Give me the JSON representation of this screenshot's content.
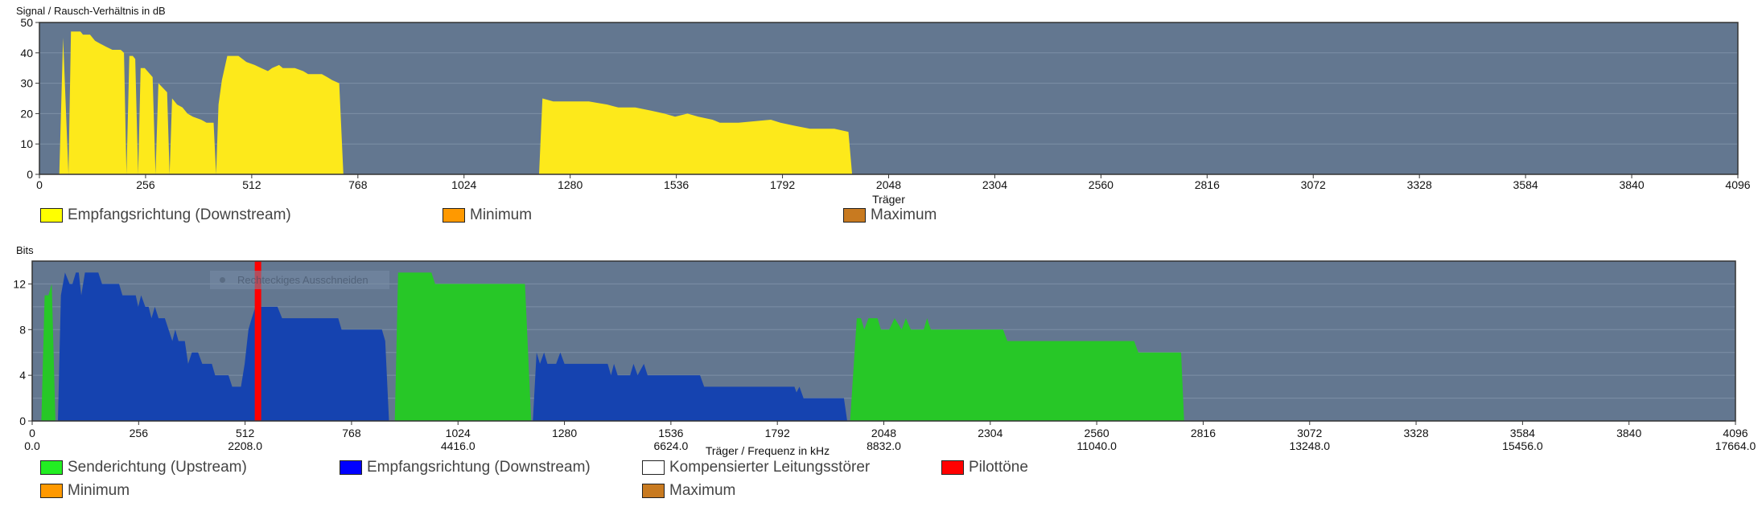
{
  "colors": {
    "plot_bg": "#637790",
    "grid": "#7d8fa6",
    "snr_fill": "#fde91b",
    "downstream_fill": "#1543b0",
    "upstream_fill": "#27c727",
    "pilot": "#ff0000"
  },
  "overlay": {
    "label": "Rechteckiges Ausschneiden"
  },
  "chart_data": [
    {
      "type": "area",
      "title": "Signal / Rausch-Verhältnis in dB",
      "xlabel": "Träger",
      "ylabel": "Signal / Rausch-Verhältnis in dB",
      "xlim": [
        0,
        4096
      ],
      "ylim": [
        0,
        50
      ],
      "xticks": [
        0,
        256,
        512,
        768,
        1024,
        1280,
        1536,
        1792,
        2048,
        2304,
        2560,
        2816,
        3072,
        3328,
        3584,
        3840,
        4096
      ],
      "yticks": [
        0,
        10,
        20,
        30,
        40,
        50
      ],
      "grid": true,
      "legend": [
        {
          "label": "Empfangsrichtung (Downstream)",
          "color": "#ffff00"
        },
        {
          "label": "Minimum",
          "color": "#ff9900"
        },
        {
          "label": "Maximum",
          "color": "#c87a20"
        }
      ],
      "series": [
        {
          "name": "Empfangsrichtung (Downstream)",
          "color": "#fde91b",
          "points": [
            [
              48,
              0
            ],
            [
              57,
              45
            ],
            [
              70,
              0
            ],
            [
              76,
              47
            ],
            [
              99,
              47
            ],
            [
              105,
              46
            ],
            [
              122,
              46
            ],
            [
              134,
              44
            ],
            [
              147,
              43
            ],
            [
              161,
              42
            ],
            [
              176,
              41
            ],
            [
              196,
              41
            ],
            [
              204,
              40
            ],
            [
              210,
              0
            ],
            [
              217,
              39
            ],
            [
              225,
              39
            ],
            [
              231,
              38
            ],
            [
              238,
              0
            ],
            [
              244,
              35
            ],
            [
              254,
              35
            ],
            [
              273,
              32
            ],
            [
              280,
              0
            ],
            [
              287,
              30
            ],
            [
              308,
              27
            ],
            [
              314,
              0
            ],
            [
              320,
              25
            ],
            [
              332,
              23
            ],
            [
              345,
              22
            ],
            [
              357,
              20
            ],
            [
              370,
              19
            ],
            [
              390,
              18
            ],
            [
              403,
              17
            ],
            [
              420,
              17
            ],
            [
              426,
              0
            ],
            [
              432,
              23
            ],
            [
              440,
              31
            ],
            [
              453,
              39
            ],
            [
              480,
              39
            ],
            [
              499,
              37
            ],
            [
              519,
              36
            ],
            [
              535,
              35
            ],
            [
              551,
              34
            ],
            [
              561,
              35
            ],
            [
              578,
              36
            ],
            [
              587,
              35
            ],
            [
              616,
              35
            ],
            [
              636,
              34
            ],
            [
              648,
              33
            ],
            [
              681,
              33
            ],
            [
              694,
              32
            ],
            [
              706,
              31
            ],
            [
              723,
              30
            ],
            [
              733,
              0
            ],
            [
              1205,
              0
            ],
            [
              1213,
              25
            ],
            [
              1239,
              24
            ],
            [
              1265,
              24
            ],
            [
              1284,
              24
            ],
            [
              1291,
              24
            ],
            [
              1325,
              24
            ],
            [
              1369,
              23
            ],
            [
              1396,
              22
            ],
            [
              1437,
              22
            ],
            [
              1474,
              21
            ],
            [
              1507,
              20
            ],
            [
              1533,
              19
            ],
            [
              1563,
              20
            ],
            [
              1589,
              19
            ],
            [
              1623,
              18
            ],
            [
              1641,
              17
            ],
            [
              1686,
              17
            ],
            [
              1764,
              18
            ],
            [
              1787,
              17
            ],
            [
              1821,
              16
            ],
            [
              1858,
              15
            ],
            [
              1877,
              15
            ],
            [
              1917,
              15
            ],
            [
              1951,
              14
            ],
            [
              1960,
              0
            ]
          ]
        }
      ]
    },
    {
      "type": "area",
      "title": "Bits",
      "xlabel": "Träger / Frequenz in kHz",
      "ylabel": "Bits",
      "xlim": [
        0,
        4096
      ],
      "ylim": [
        0,
        14
      ],
      "xticks": [
        0,
        256,
        512,
        768,
        1024,
        1280,
        1536,
        1792,
        2048,
        2304,
        2560,
        2816,
        3072,
        3328,
        3584,
        3840,
        4096
      ],
      "freq_ticks": [
        [
          0,
          "0.0"
        ],
        [
          512,
          "2208.0"
        ],
        [
          1024,
          "4416.0"
        ],
        [
          1536,
          "6624.0"
        ],
        [
          2048,
          "8832.0"
        ],
        [
          2560,
          "11040.0"
        ],
        [
          3072,
          "13248.0"
        ],
        [
          3584,
          "15456.0"
        ],
        [
          4096,
          "17664.0"
        ]
      ],
      "yticks": [
        0,
        4,
        8,
        12
      ],
      "ygrid": [
        2,
        4,
        6,
        8,
        10,
        12
      ],
      "grid": true,
      "legend": [
        {
          "label": "Senderichtung (Upstream)",
          "color": "#22ee22"
        },
        {
          "label": "Empfangsrichtung (Downstream)",
          "color": "#0000ff"
        },
        {
          "label": "Kompensierter Leitungsstörer",
          "color": "#ffffff"
        },
        {
          "label": "Pilottöne",
          "color": "#ff0000"
        },
        {
          "label": "Minimum",
          "color": "#ff9900"
        },
        {
          "label": "Maximum",
          "color": "#c87a20"
        }
      ],
      "series": [
        {
          "name": "Senderichtung (Upstream)",
          "color": "#27c727",
          "segments": [
            [
              [
                22,
                0
              ],
              [
                30,
                11
              ],
              [
                39,
                11
              ],
              [
                47,
                12
              ],
              [
                56,
                0
              ]
            ],
            [
              [
                872,
                0
              ],
              [
                880,
                13
              ],
              [
                960,
                13
              ],
              [
                969,
                12
              ],
              [
                1185,
                12
              ],
              [
                1200,
                0
              ]
            ],
            [
              [
                1967,
                0
              ],
              [
                1983,
                9
              ],
              [
                1993,
                9
              ],
              [
                2001,
                8
              ],
              [
                2011,
                9
              ],
              [
                2033,
                9
              ],
              [
                2041,
                8
              ],
              [
                2061,
                8
              ],
              [
                2074,
                9
              ],
              [
                2091,
                8
              ],
              [
                2101,
                9
              ],
              [
                2113,
                8
              ],
              [
                2144,
                8
              ],
              [
                2152,
                9
              ],
              [
                2161,
                8
              ],
              [
                2335,
                8
              ],
              [
                2345,
                7
              ],
              [
                2650,
                7
              ],
              [
                2660,
                6
              ],
              [
                2763,
                6
              ],
              [
                2770,
                0
              ]
            ]
          ]
        },
        {
          "name": "Empfangsrichtung (Downstream)",
          "color": "#1543b0",
          "segments": [
            [
              [
                62,
                0
              ],
              [
                69,
                11
              ],
              [
                79,
                13
              ],
              [
                90,
                12
              ],
              [
                97,
                12
              ],
              [
                105,
                13
              ],
              [
                112,
                13
              ],
              [
                118,
                11
              ],
              [
                127,
                13
              ],
              [
                159,
                13
              ],
              [
                168,
                12
              ],
              [
                209,
                12
              ],
              [
                217,
                11
              ],
              [
                249,
                11
              ],
              [
                255,
                10
              ],
              [
                262,
                11
              ],
              [
                272,
                10
              ],
              [
                280,
                10
              ],
              [
                287,
                9
              ],
              [
                295,
                10
              ],
              [
                304,
                9
              ],
              [
                319,
                9
              ],
              [
                337,
                7
              ],
              [
                344,
                8
              ],
              [
                352,
                7
              ],
              [
                367,
                7
              ],
              [
                375,
                5
              ],
              [
                384,
                6
              ],
              [
                399,
                6
              ],
              [
                409,
                5
              ],
              [
                432,
                5
              ],
              [
                440,
                4
              ],
              [
                472,
                4
              ],
              [
                481,
                3
              ],
              [
                502,
                3
              ],
              [
                511,
                5
              ],
              [
                520,
                8
              ],
              [
                528,
                9
              ],
              [
                537,
                10
              ],
              [
                547,
                10
              ],
              [
                590,
                10
              ],
              [
                601,
                9
              ],
              [
                736,
                9
              ],
              [
                744,
                8
              ],
              [
                841,
                8
              ],
              [
                849,
                7
              ],
              [
                858,
                0
              ]
            ],
            [
              [
                1204,
                0
              ],
              [
                1213,
                6
              ],
              [
                1221,
                5
              ],
              [
                1231,
                6
              ],
              [
                1239,
                5
              ],
              [
                1260,
                5
              ],
              [
                1270,
                6
              ],
              [
                1280,
                5
              ],
              [
                1384,
                5
              ],
              [
                1392,
                4
              ],
              [
                1399,
                5
              ],
              [
                1408,
                4
              ],
              [
                1438,
                4
              ],
              [
                1446,
                5
              ],
              [
                1456,
                4
              ],
              [
                1471,
                5
              ],
              [
                1480,
                4
              ],
              [
                1606,
                4
              ],
              [
                1616,
                3
              ],
              [
                1833,
                3
              ],
              [
                1838,
                2.5
              ],
              [
                1845,
                3
              ],
              [
                1855,
                2
              ],
              [
                1952,
                2
              ],
              [
                1960,
                0
              ]
            ]
          ]
        },
        {
          "name": "Pilottöne",
          "color": "#ff0000",
          "carriers": [
            543
          ]
        }
      ]
    }
  ]
}
